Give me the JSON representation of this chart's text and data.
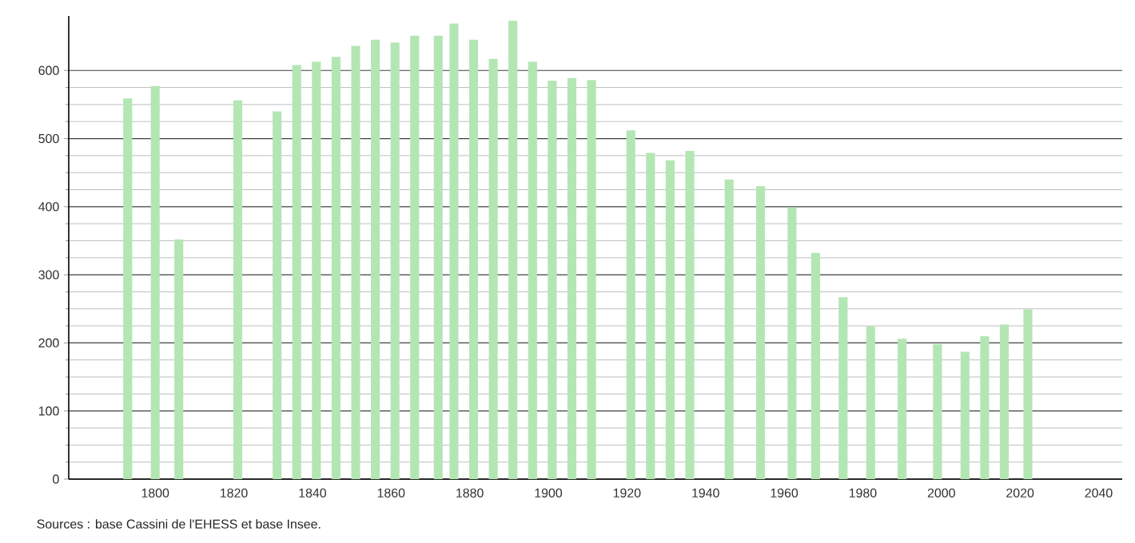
{
  "chart_data": {
    "type": "bar",
    "x": [
      1793,
      1800,
      1806,
      1821,
      1831,
      1836,
      1841,
      1846,
      1851,
      1856,
      1861,
      1866,
      1872,
      1876,
      1881,
      1886,
      1891,
      1896,
      1901,
      1906,
      1911,
      1921,
      1926,
      1931,
      1936,
      1946,
      1954,
      1962,
      1968,
      1975,
      1982,
      1990,
      1999,
      2006,
      2011,
      2016,
      2022
    ],
    "values": [
      559,
      577,
      352,
      556,
      540,
      608,
      613,
      620,
      636,
      645,
      641,
      651,
      651,
      669,
      645,
      617,
      673,
      613,
      585,
      589,
      586,
      512,
      479,
      468,
      482,
      440,
      430,
      399,
      332,
      267,
      224,
      206,
      198,
      187,
      210,
      227,
      249
    ],
    "color": "#b3e6b3",
    "xlim": [
      1778,
      2046
    ],
    "ylim": [
      0,
      680
    ],
    "xticks": [
      1800,
      1820,
      1840,
      1860,
      1880,
      1900,
      1920,
      1940,
      1960,
      1980,
      2000,
      2020,
      2040
    ],
    "yticks": [
      0,
      100,
      200,
      300,
      400,
      500,
      600
    ],
    "grid": "y",
    "annotations": [
      "Sources : base Cassini de l'EHESS et base Insee."
    ]
  }
}
